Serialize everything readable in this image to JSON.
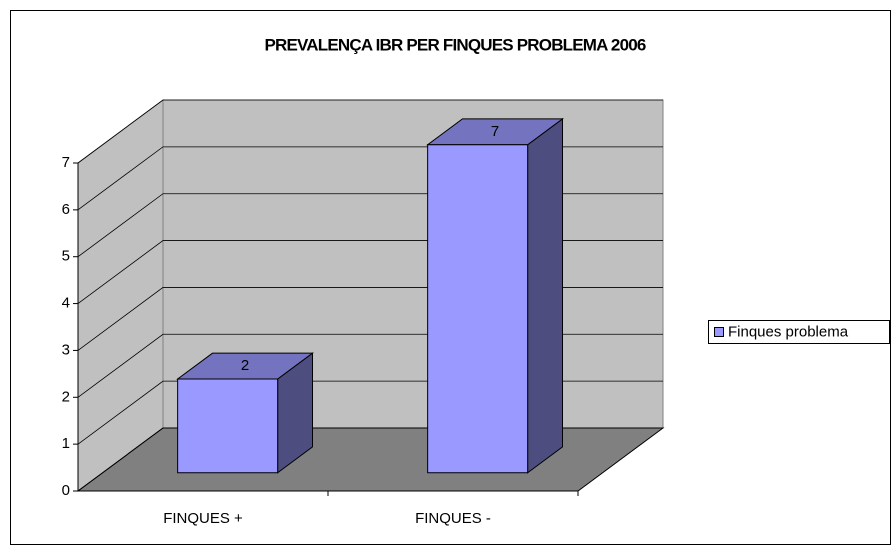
{
  "chart_data": {
    "type": "bar3d",
    "title": "PREVALENÇA IBR PER FINQUES PROBLEMA 2006",
    "categories": [
      "FINQUES +",
      "FINQUES -"
    ],
    "series": [
      {
        "name": "Finques problema",
        "color": "#9999ff",
        "values": [
          2,
          7
        ]
      }
    ],
    "ylim": [
      0,
      7
    ],
    "yticks": [
      0,
      1,
      2,
      3,
      4,
      5,
      6,
      7
    ],
    "grid": true,
    "legend": "right"
  }
}
